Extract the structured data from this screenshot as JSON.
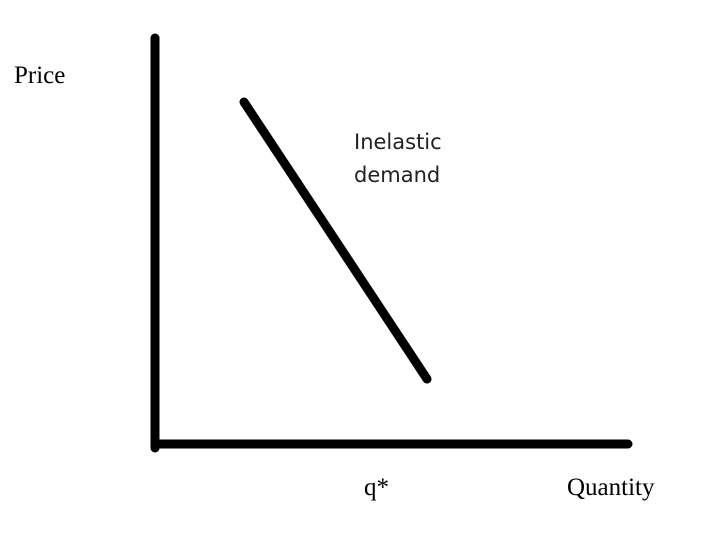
{
  "diagram": {
    "y_axis_label": "Price",
    "x_axis_label": "Quantity",
    "x_marker_label": "q*",
    "curve_label_line1": "Inelastic",
    "curve_label_line2": "demand",
    "line_color": "#000000"
  }
}
